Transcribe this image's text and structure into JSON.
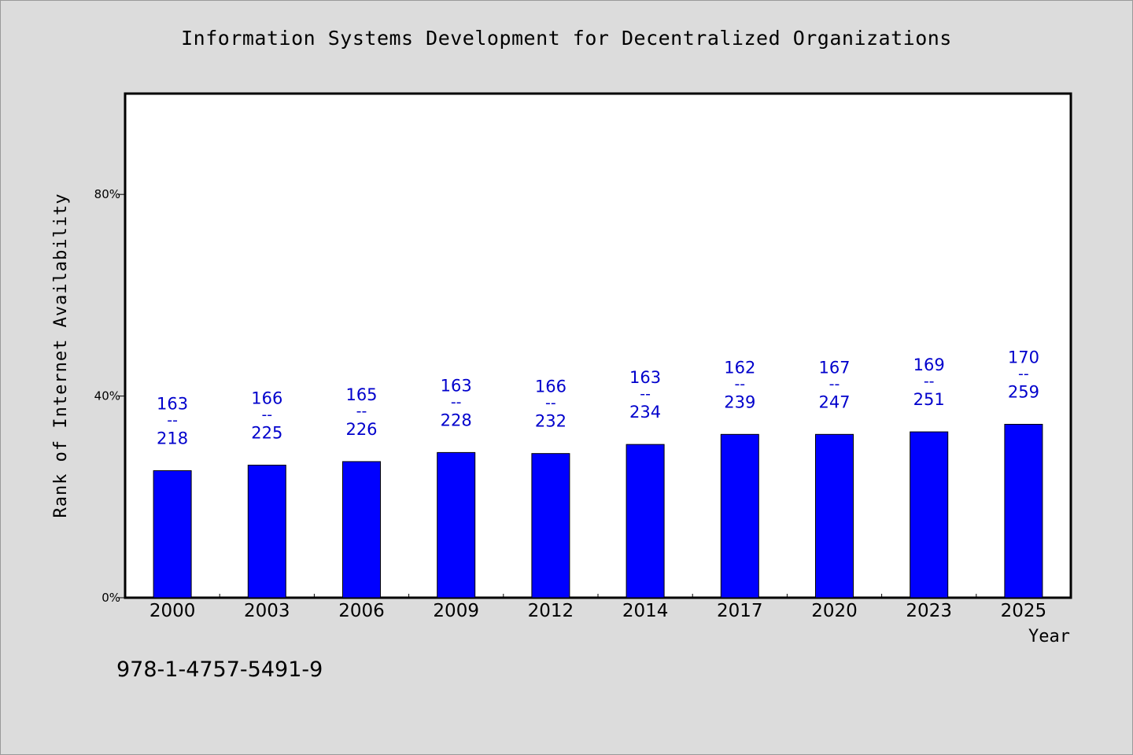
{
  "chart_data": {
    "type": "bar",
    "title": "Information Systems Development for Decentralized Organizations",
    "xlabel": "Year",
    "ylabel": "Rank of Internet Availability",
    "categories": [
      "2000",
      "2003",
      "2006",
      "2009",
      "2012",
      "2014",
      "2017",
      "2020",
      "2023",
      "2025"
    ],
    "values": [
      25.2,
      26.3,
      27.0,
      28.8,
      28.6,
      30.4,
      32.4,
      32.4,
      32.9,
      34.4
    ],
    "bar_labels": [
      {
        "top": "163",
        "sep": "--",
        "bottom": "218"
      },
      {
        "top": "166",
        "sep": "--",
        "bottom": "225"
      },
      {
        "top": "165",
        "sep": "--",
        "bottom": "226"
      },
      {
        "top": "163",
        "sep": "--",
        "bottom": "228"
      },
      {
        "top": "166",
        "sep": "--",
        "bottom": "232"
      },
      {
        "top": "163",
        "sep": "--",
        "bottom": "234"
      },
      {
        "top": "162",
        "sep": "--",
        "bottom": "239"
      },
      {
        "top": "167",
        "sep": "--",
        "bottom": "247"
      },
      {
        "top": "169",
        "sep": "--",
        "bottom": "251"
      },
      {
        "top": "170",
        "sep": "--",
        "bottom": "259"
      }
    ],
    "yticks": [
      0,
      40,
      80
    ],
    "ytick_labels": [
      "0%",
      "40%",
      "80%"
    ],
    "ylim": [
      0,
      100
    ],
    "grid": false,
    "legend": "none",
    "colors": {
      "bar": "#0000ff",
      "label": "#0000cc",
      "plot_bg": "#ffffff",
      "page_bg": "#dcdcdc"
    }
  },
  "footer": {
    "isbn": "978-1-4757-5491-9"
  }
}
